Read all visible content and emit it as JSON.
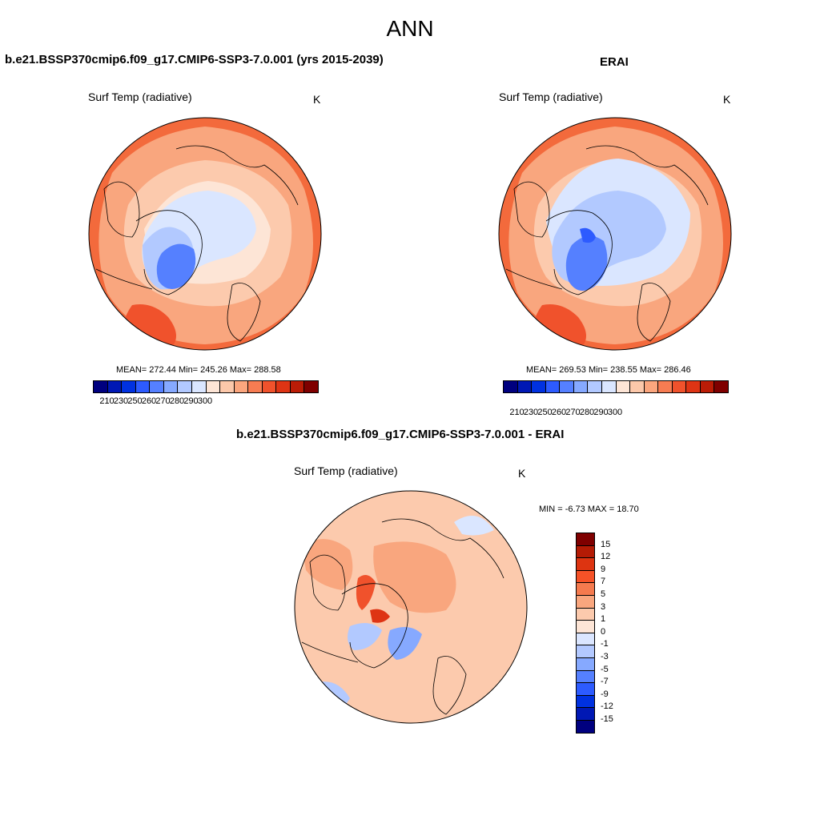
{
  "figure": {
    "title": "ANN"
  },
  "panels": {
    "model": {
      "title": "b.e21.BSSP370cmip6.f09_g17.CMIP6-SSP3-7.0.001 (yrs 2015-2039)",
      "variable": "Surf Temp (radiative)",
      "units": "K",
      "stats": "MEAN= 272.44  Min= 245.26  Max= 288.58"
    },
    "obs": {
      "title": "ERAI",
      "variable": "Surf Temp (radiative)",
      "units": "K",
      "stats": "MEAN= 269.53  Min= 238.55  Max= 286.46"
    },
    "diff": {
      "title": "b.e21.BSSP370cmip6.f09_g17.CMIP6-SSP3-7.0.001 - ERAI",
      "variable": "Surf Temp (radiative)",
      "units": "K",
      "stats": "MIN =  -6.73 MAX =  18.70"
    }
  },
  "colorbars": {
    "temp": {
      "labels": [
        "210",
        "230",
        "250",
        "260",
        "270",
        "280",
        "290",
        "300"
      ],
      "colors": [
        "#00007f",
        "#0018b4",
        "#0031e0",
        "#2d5bff",
        "#5580ff",
        "#86a9ff",
        "#b2c9ff",
        "#dae6ff",
        "#fde5d6",
        "#fcc8aa",
        "#fba67e",
        "#f77c52",
        "#f0522c",
        "#de3414",
        "#bb1c06",
        "#7f0000"
      ]
    },
    "diff": {
      "labels": [
        "15",
        "12",
        "9",
        "7",
        "5",
        "3",
        "1",
        "0",
        "-1",
        "-3",
        "-5",
        "-7",
        "-9",
        "-12",
        "-15"
      ],
      "colors": [
        "#7f0000",
        "#b41b05",
        "#dd3411",
        "#f65227",
        "#f57a4e",
        "#f9a67e",
        "#fccaad",
        "#fde5d6",
        "#dbe6ff",
        "#b3c9ff",
        "#86a9ff",
        "#5580ff",
        "#2d5bff",
        "#0031e0",
        "#0018b4",
        "#00007f"
      ]
    }
  },
  "map_colors": {
    "warm_outer": "#f36a3c",
    "warm_mid": "#f9a67e",
    "warm_light": "#fccaad",
    "pale": "#fde5d6",
    "cold_light": "#dae6ff",
    "cold_mid": "#b2c9ff",
    "cold_deep": "#5580ff",
    "cold_core": "#2d5bff"
  }
}
